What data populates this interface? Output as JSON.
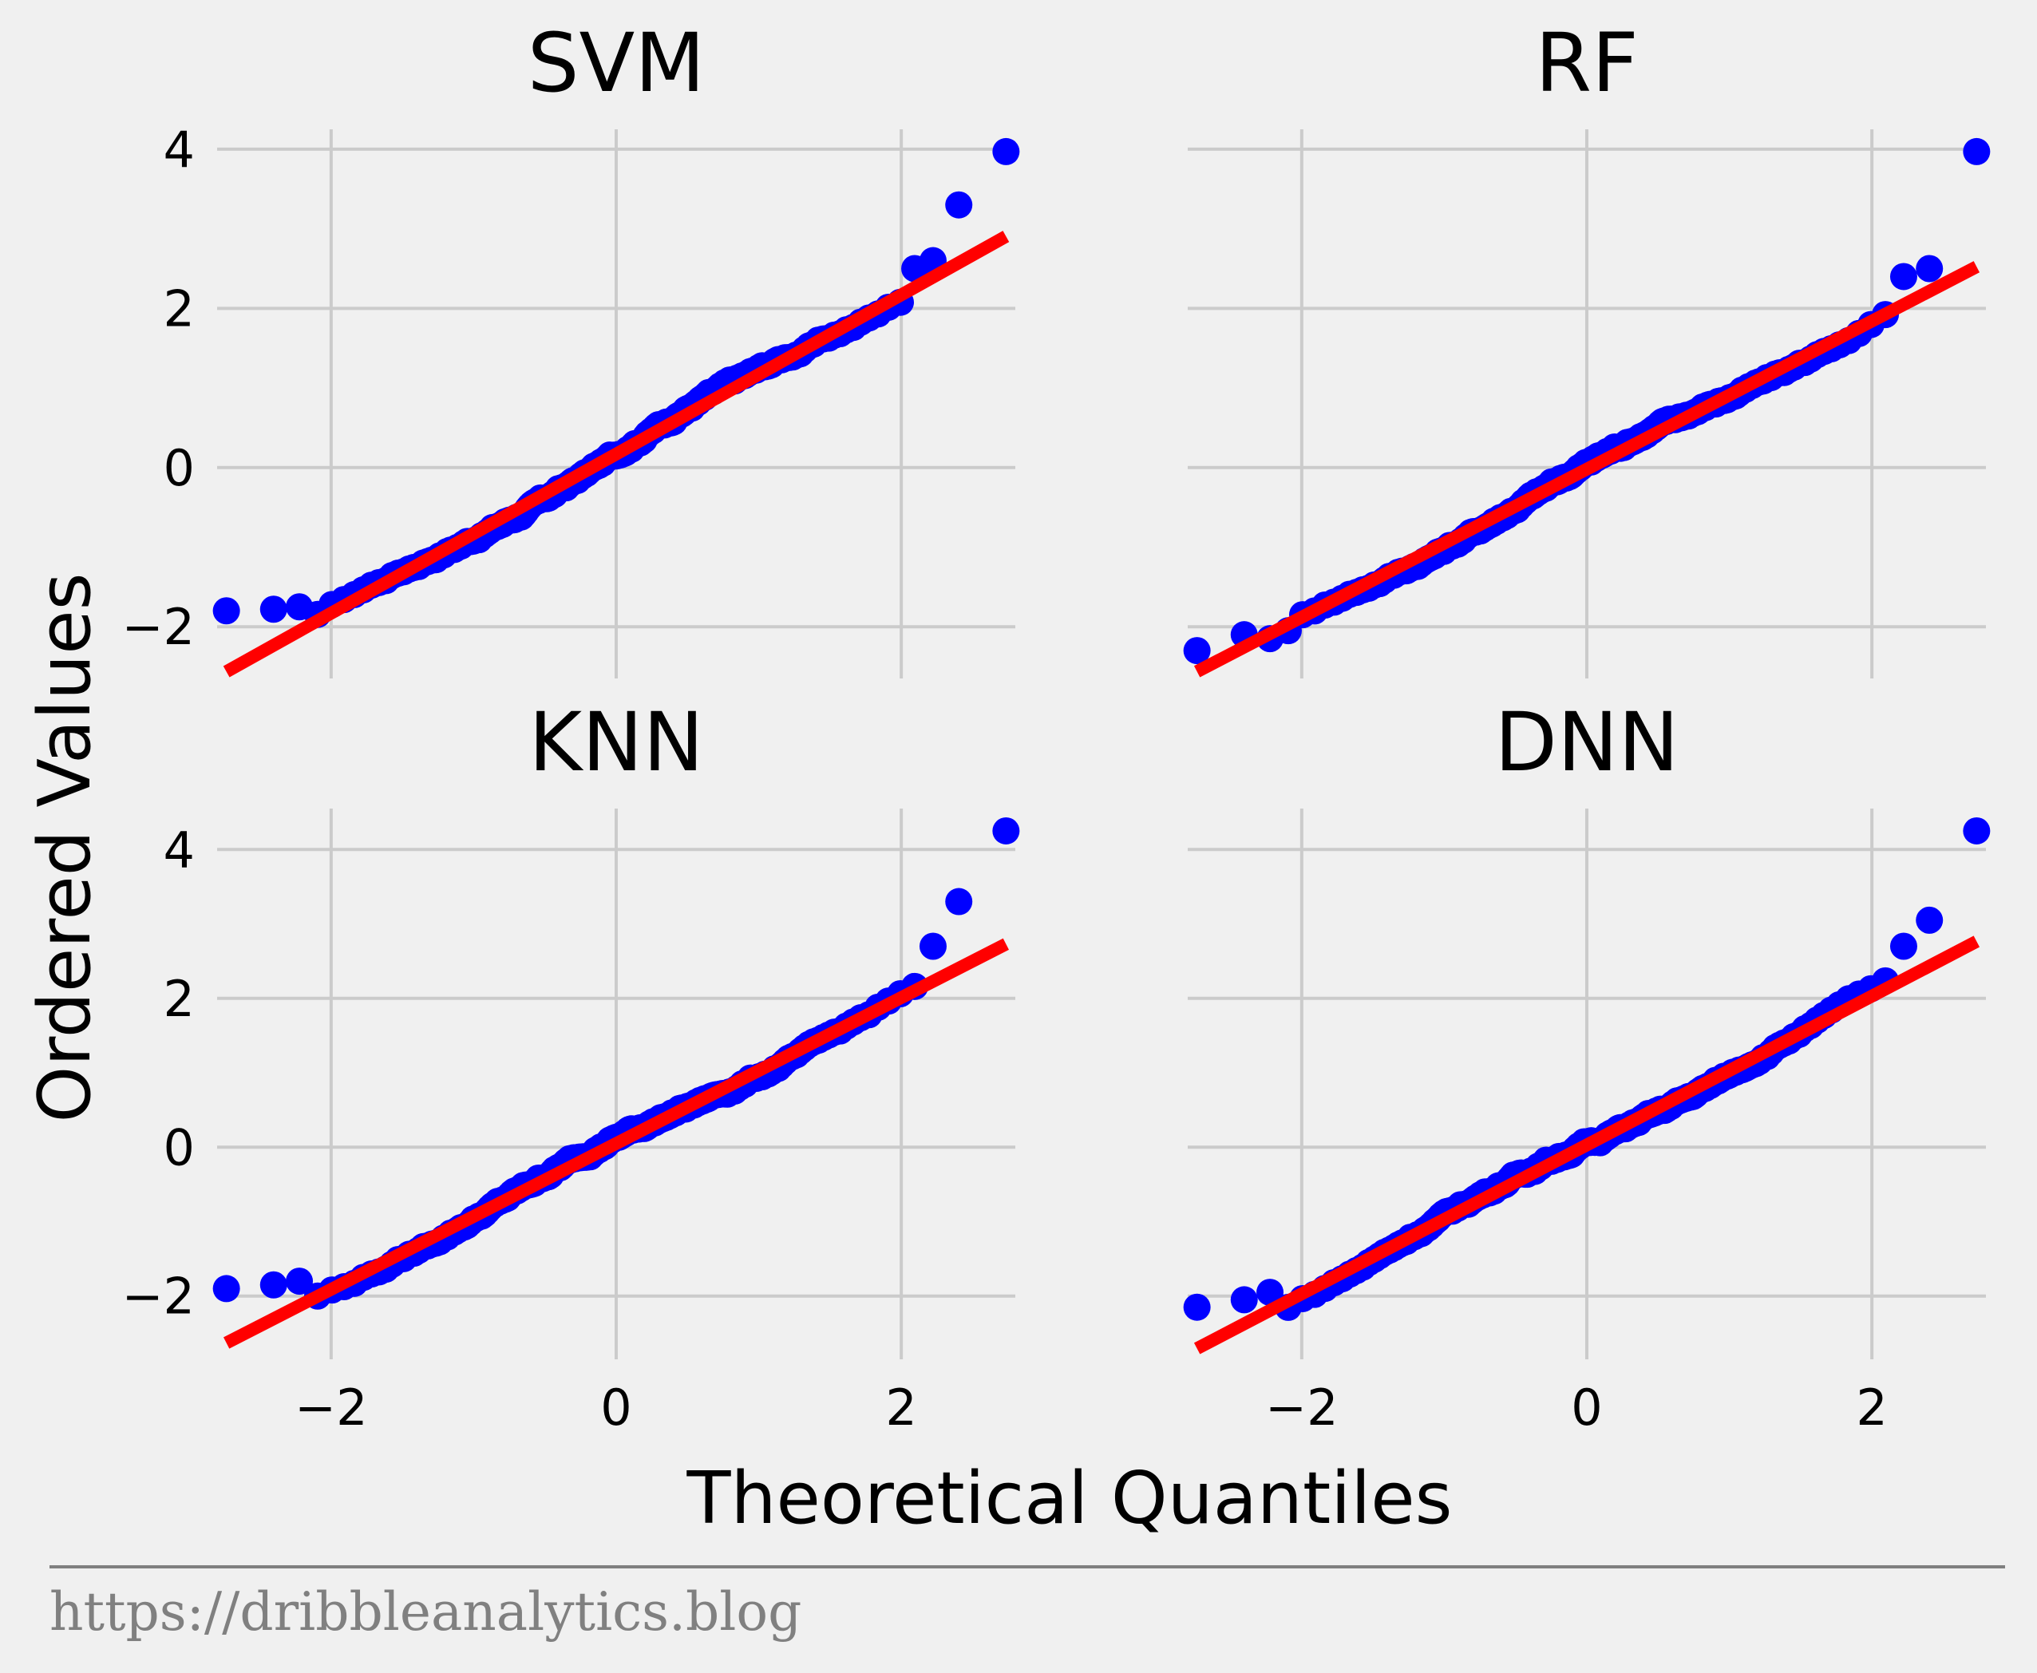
{
  "figure": {
    "xlabel": "Theoretical Quantiles",
    "ylabel": "Ordered Values",
    "footer": "https://dribbleanalytics.blog",
    "colors": {
      "background": "#f0f0f0",
      "grid": "#cbcbcb",
      "points": "#0000ff",
      "fit_line": "#ff0000",
      "footer": "#808080"
    }
  },
  "chart_data": [
    {
      "type": "scatter",
      "title": "SVM",
      "xlim": [
        -2.8,
        2.8
      ],
      "ylim": [
        -2.65,
        4.25
      ],
      "xticks": [
        "−2",
        "0",
        "2"
      ],
      "yticks": [
        "−2",
        "0",
        "2",
        "4"
      ],
      "show_yticklabels": true,
      "show_xticklabels": false,
      "grid": true,
      "n": 200,
      "fit_line": {
        "slope": 1.0,
        "intercept": 0.17
      },
      "extremes_high": [
        2.5,
        2.6,
        3.3,
        3.97
      ],
      "extremes_low": [
        -1.8,
        -1.78,
        -1.75
      ],
      "series": [
        {
          "name": "",
          "values": "ordered sample vs theoretical quantiles"
        }
      ]
    },
    {
      "type": "scatter",
      "title": "RF",
      "xlim": [
        -2.8,
        2.8
      ],
      "ylim": [
        -2.65,
        4.25
      ],
      "xticks": [
        "−2",
        "0",
        "2"
      ],
      "yticks": [
        "−2",
        "0",
        "2",
        "4"
      ],
      "show_yticklabels": false,
      "show_xticklabels": false,
      "grid": true,
      "n": 200,
      "fit_line": {
        "slope": 0.93,
        "intercept": -0.02
      },
      "extremes_high": [
        2.4,
        2.5,
        3.97
      ],
      "extremes_low": [
        -2.3,
        -2.1,
        -2.15,
        -2.05
      ],
      "series": [
        {
          "name": "",
          "values": "ordered sample vs theoretical quantiles"
        }
      ]
    },
    {
      "type": "scatter",
      "title": "KNN",
      "xlim": [
        -2.8,
        2.8
      ],
      "ylim": [
        -2.85,
        4.55
      ],
      "xticks": [
        "−2",
        "0",
        "2"
      ],
      "yticks": [
        "−2",
        "0",
        "2",
        "4"
      ],
      "show_yticklabels": true,
      "show_xticklabels": true,
      "grid": true,
      "n": 200,
      "fit_line": {
        "slope": 0.98,
        "intercept": 0.05
      },
      "extremes_high": [
        2.7,
        3.3,
        4.25
      ],
      "extremes_low": [
        -1.9,
        -1.85,
        -1.8
      ],
      "series": [
        {
          "name": "",
          "values": "ordered sample vs theoretical quantiles"
        }
      ]
    },
    {
      "type": "scatter",
      "title": "DNN",
      "xlim": [
        -2.8,
        2.8
      ],
      "ylim": [
        -2.85,
        4.55
      ],
      "xticks": [
        "−2",
        "0",
        "2"
      ],
      "yticks": [
        "−2",
        "0",
        "2",
        "4"
      ],
      "show_yticklabels": false,
      "show_xticklabels": true,
      "grid": true,
      "n": 200,
      "fit_line": {
        "slope": 1.0,
        "intercept": 0.03
      },
      "extremes_high": [
        2.7,
        3.05,
        4.25
      ],
      "extremes_low": [
        -2.15,
        -2.05,
        -1.95
      ],
      "series": [
        {
          "name": "",
          "values": "ordered sample vs theoretical quantiles"
        }
      ]
    }
  ]
}
